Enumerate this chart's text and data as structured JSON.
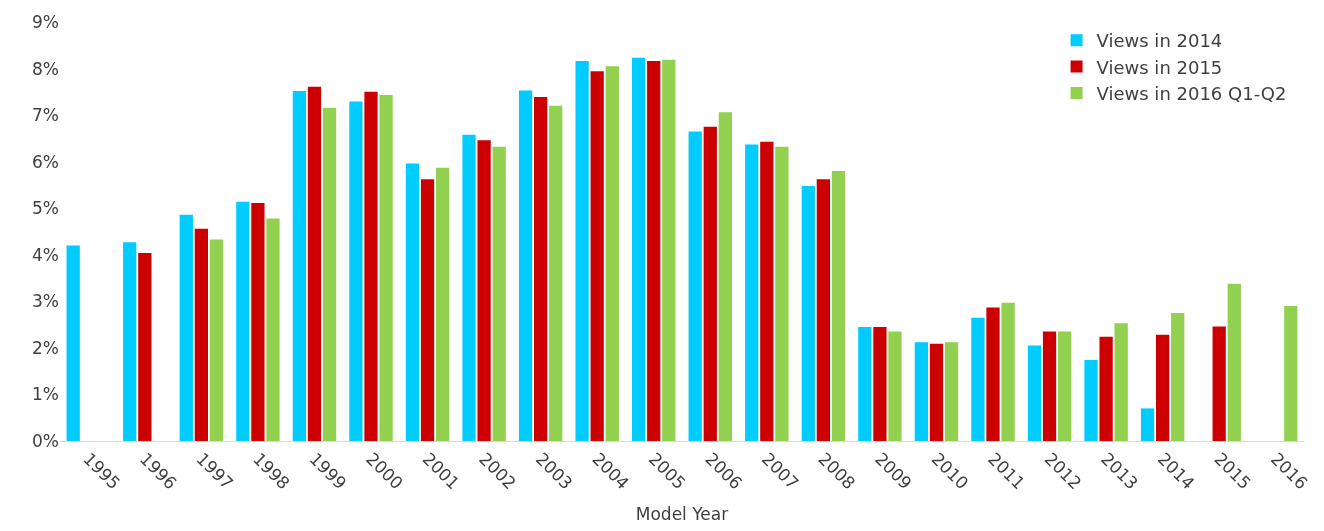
{
  "chart_data": {
    "type": "bar",
    "xlabel": "Model Year",
    "categories": [
      "1995",
      "1996",
      "1997",
      "1998",
      "1999",
      "2000",
      "2001",
      "2002",
      "2003",
      "2004",
      "2005",
      "2006",
      "2007",
      "2008",
      "2009",
      "2010",
      "2011",
      "2012",
      "2013",
      "2014",
      "2015",
      "2016"
    ],
    "series": [
      {
        "name": "Views in 2014",
        "color": "#00ccff",
        "values": [
          4.2,
          4.27,
          4.86,
          5.14,
          7.52,
          7.29,
          5.96,
          6.58,
          7.53,
          8.16,
          8.23,
          6.65,
          6.37,
          5.48,
          2.45,
          2.12,
          2.65,
          2.05,
          1.74,
          0.7,
          null,
          null
        ]
      },
      {
        "name": "Views in 2015",
        "color": "#cc0000",
        "values": [
          null,
          4.04,
          4.56,
          5.11,
          7.61,
          7.5,
          5.62,
          6.46,
          7.39,
          7.94,
          8.16,
          6.75,
          6.43,
          5.62,
          2.45,
          2.09,
          2.87,
          2.35,
          2.24,
          2.28,
          2.46,
          null
        ]
      },
      {
        "name": "Views in 2016 Q1-Q2",
        "color": "#92d050",
        "values": [
          null,
          null,
          4.33,
          4.78,
          7.16,
          7.43,
          5.87,
          6.32,
          7.2,
          8.05,
          8.19,
          7.06,
          6.32,
          5.8,
          2.35,
          2.12,
          2.97,
          2.35,
          2.53,
          2.75,
          3.38,
          2.9
        ]
      }
    ],
    "ylim": [
      0,
      9
    ],
    "yticks": [
      {
        "value": 0,
        "label": "0%"
      },
      {
        "value": 1,
        "label": "1%"
      },
      {
        "value": 2,
        "label": "2%"
      },
      {
        "value": 3,
        "label": "3%"
      },
      {
        "value": 4,
        "label": "4%"
      },
      {
        "value": 5,
        "label": "5%"
      },
      {
        "value": 6,
        "label": "6%"
      },
      {
        "value": 7,
        "label": "7%"
      },
      {
        "value": 8,
        "label": "8%"
      },
      {
        "value": 9,
        "label": "9%"
      }
    ],
    "legend": "top right"
  }
}
